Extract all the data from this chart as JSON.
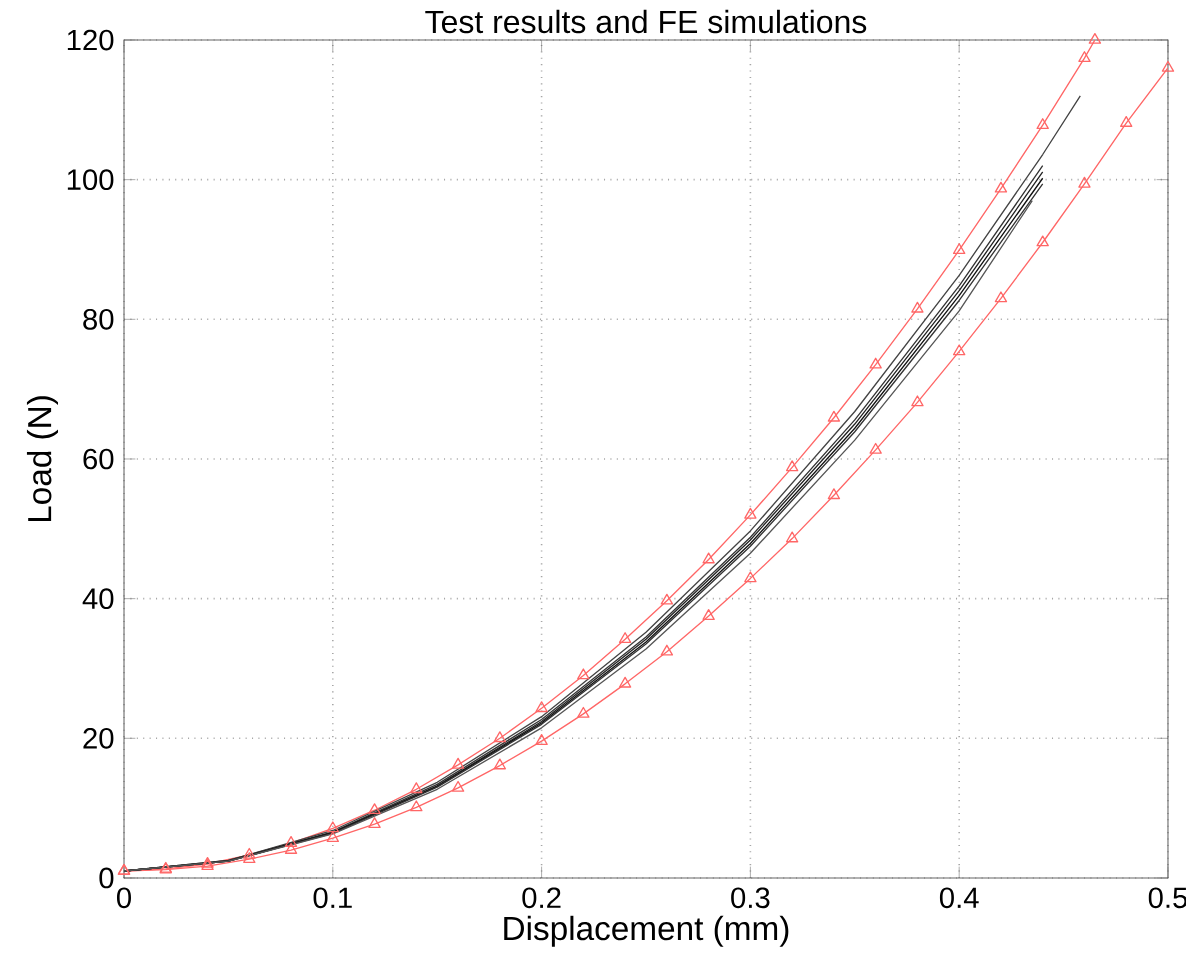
{
  "chart_data": {
    "type": "line",
    "title": "Test results and FE simulations",
    "xlabel": "Displacement (mm)",
    "ylabel": "Load (N)",
    "xlim": [
      0,
      0.5
    ],
    "ylim": [
      0,
      120
    ],
    "xticks": [
      0,
      0.1,
      0.2,
      0.3,
      0.4,
      0.5
    ],
    "yticks": [
      0,
      20,
      40,
      60,
      80,
      100,
      120
    ],
    "grid": true,
    "line_style": "solid",
    "series": [
      {
        "color": "#ff6666",
        "marker": "triangle",
        "x": [
          0,
          0.02,
          0.04,
          0.06,
          0.08,
          0.1,
          0.12,
          0.14,
          0.16,
          0.18,
          0.2,
          0.22,
          0.24,
          0.26,
          0.28,
          0.3,
          0.32,
          0.34,
          0.36,
          0.38,
          0.4,
          0.42,
          0.44,
          0.46,
          0.465
        ],
        "values": [
          1,
          1.3,
          2,
          3.3,
          5,
          7.1,
          9.7,
          12.7,
          16.2,
          20,
          24.3,
          29,
          34.2,
          39.7,
          45.6,
          52,
          58.8,
          65.9,
          73.5,
          81.5,
          89.9,
          98.7,
          107.8,
          117.4,
          120
        ]
      },
      {
        "color": "#ff6666",
        "marker": "triangle",
        "x": [
          0,
          0.02,
          0.04,
          0.06,
          0.08,
          0.1,
          0.12,
          0.14,
          0.16,
          0.18,
          0.2,
          0.22,
          0.24,
          0.26,
          0.28,
          0.3,
          0.32,
          0.34,
          0.36,
          0.38,
          0.4,
          0.42,
          0.44,
          0.46,
          0.48,
          0.5
        ],
        "values": [
          1,
          1.2,
          1.7,
          2.7,
          4,
          5.7,
          7.7,
          10.1,
          12.9,
          16.1,
          19.6,
          23.5,
          27.8,
          32.4,
          37.5,
          42.9,
          48.6,
          54.8,
          61.3,
          68.1,
          75.4,
          83,
          91,
          99.4,
          108.1,
          116
        ]
      },
      {
        "color": "#444444",
        "marker": "none",
        "x": [
          0,
          0.05,
          0.1,
          0.15,
          0.2,
          0.25,
          0.3,
          0.35,
          0.4,
          0.44,
          0.458
        ],
        "values": [
          1,
          2.5,
          6.8,
          13.7,
          23.1,
          35.2,
          49.7,
          66.8,
          86.3,
          103.6,
          112
        ]
      },
      {
        "color": "#333333",
        "marker": "none",
        "x": [
          0,
          0.05,
          0.1,
          0.15,
          0.2,
          0.25,
          0.3,
          0.35,
          0.4,
          0.44
        ],
        "values": [
          1,
          2.5,
          6.6,
          13.4,
          22.7,
          34.5,
          48.8,
          65.6,
          84.8,
          102
        ]
      },
      {
        "color": "#222222",
        "marker": "none",
        "x": [
          0,
          0.05,
          0.1,
          0.15,
          0.2,
          0.25,
          0.3,
          0.35,
          0.4,
          0.44
        ],
        "values": [
          1,
          2.4,
          6.5,
          13.2,
          22.4,
          34.2,
          48.4,
          65,
          84.1,
          101.1
        ]
      },
      {
        "color": "#111111",
        "marker": "none",
        "x": [
          0,
          0.05,
          0.1,
          0.15,
          0.2,
          0.25,
          0.3,
          0.35,
          0.4,
          0.44
        ],
        "values": [
          1,
          2.4,
          6.5,
          13.1,
          22.2,
          33.8,
          47.9,
          64.4,
          83.4,
          100.2
        ]
      },
      {
        "color": "#333333",
        "marker": "none",
        "x": [
          0,
          0.05,
          0.1,
          0.15,
          0.2,
          0.25,
          0.3,
          0.35,
          0.4,
          0.44
        ],
        "values": [
          1,
          2.4,
          6.4,
          13,
          22,
          33.5,
          47.5,
          63.9,
          82.7,
          99.4
        ]
      },
      {
        "color": "#555555",
        "marker": "none",
        "x": [
          0,
          0.05,
          0.1,
          0.15,
          0.2,
          0.25,
          0.3,
          0.35,
          0.4,
          0.435
        ],
        "values": [
          1,
          2.4,
          6.3,
          12.7,
          21.5,
          32.8,
          46.5,
          62.7,
          81.2,
          97
        ]
      }
    ]
  }
}
